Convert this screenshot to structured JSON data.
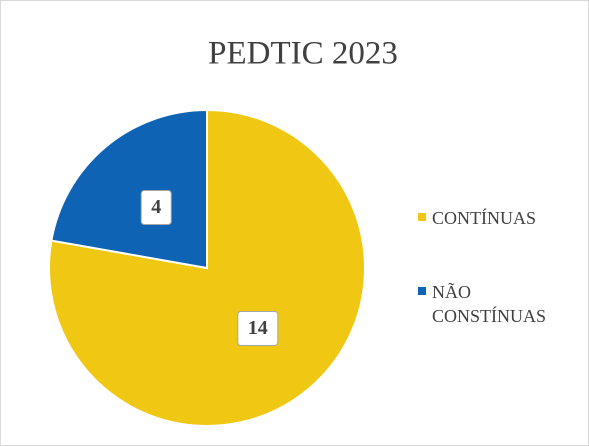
{
  "chart_data": {
    "type": "pie",
    "title": "PEDTIC 2023",
    "categories": [
      "CONTÍNUAS",
      "NÃO CONSTÍNUAS"
    ],
    "values": [
      14,
      4
    ],
    "colors": [
      "#f0c814",
      "#0e63b4"
    ]
  }
}
